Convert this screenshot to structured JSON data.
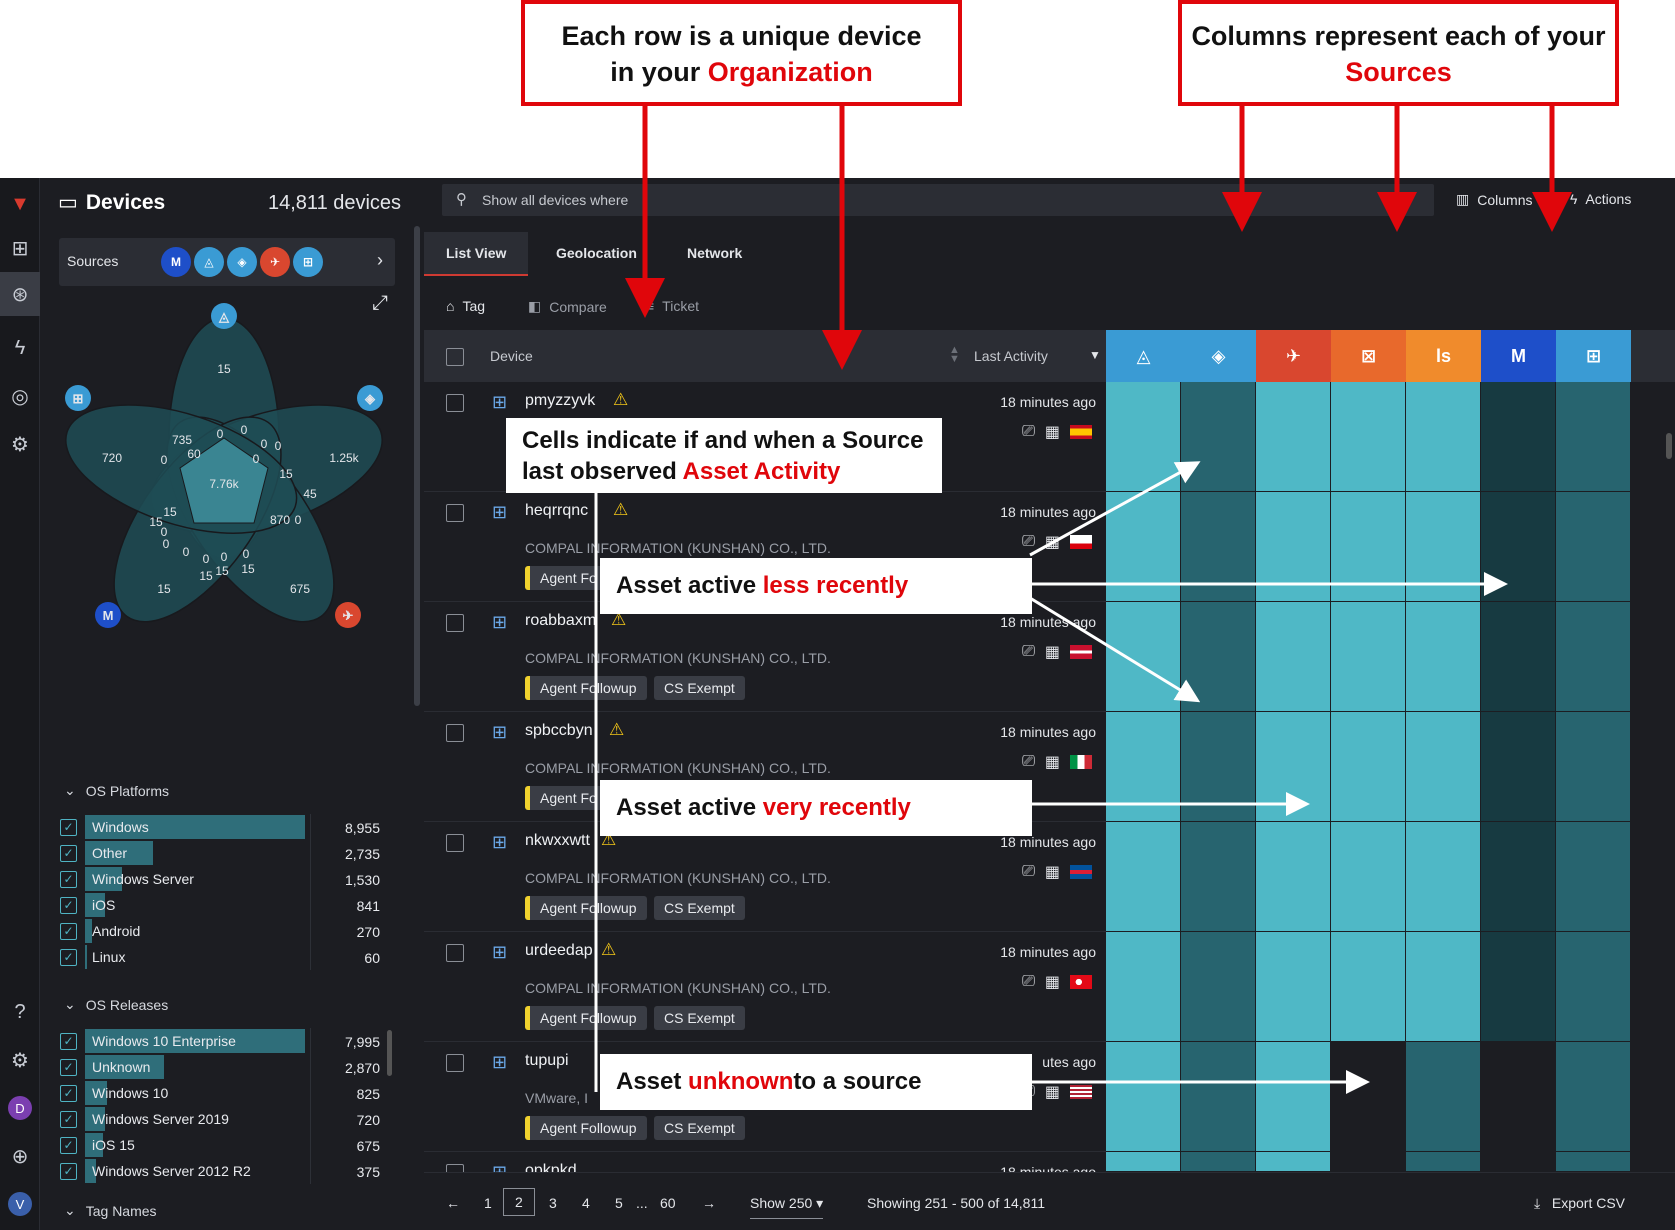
{
  "annotations": {
    "rows_box": {
      "line1": "Each row is a unique device",
      "line2_pre": "in your ",
      "line2_red": "Organization"
    },
    "cols_box": {
      "line1": "Columns represent each of your",
      "line2_red": "Sources"
    },
    "cells_box": {
      "line1": "Cells indicate if and when a Source",
      "line2_pre": "last observed ",
      "line2_red": "Asset Activity"
    },
    "less_recent": {
      "pre": "Asset active ",
      "red": "less recently"
    },
    "very_recent": {
      "pre": "Asset active ",
      "red": "very recently"
    },
    "unknown": {
      "pre": "Asset ",
      "red": "unknown",
      "post": " to a source"
    }
  },
  "header": {
    "title": "Devices",
    "count": "14,811 devices",
    "search_placeholder": "Show all devices where",
    "columns_label": "Columns",
    "actions_label": "Actions"
  },
  "sources": {
    "label": "Sources"
  },
  "venn": {
    "center": "7.76k",
    "labels": [
      "15",
      "735",
      "60",
      "720",
      "1.25k",
      "15",
      "45",
      "870",
      "15",
      "15",
      "675",
      "15",
      "15",
      "15",
      "0",
      "0",
      "0",
      "0",
      "0",
      "0",
      "0",
      "0",
      "0",
      "0",
      "0",
      "0",
      "0"
    ]
  },
  "os_platforms": {
    "title": "OS Platforms",
    "items": [
      {
        "name": "Windows",
        "value": "8,955",
        "fraction": 1.0
      },
      {
        "name": "Other",
        "value": "2,735",
        "fraction": 0.31
      },
      {
        "name": "Windows Server",
        "value": "1,530",
        "fraction": 0.17
      },
      {
        "name": "iOS",
        "value": "841",
        "fraction": 0.09
      },
      {
        "name": "Android",
        "value": "270",
        "fraction": 0.03
      },
      {
        "name": "Linux",
        "value": "60",
        "fraction": 0.01
      }
    ]
  },
  "os_releases": {
    "title": "OS Releases",
    "items": [
      {
        "name": "Windows 10 Enterprise",
        "value": "7,995",
        "fraction": 1.0
      },
      {
        "name": "Unknown",
        "value": "2,870",
        "fraction": 0.36
      },
      {
        "name": "Windows 10",
        "value": "825",
        "fraction": 0.1
      },
      {
        "name": "Windows Server 2019",
        "value": "720",
        "fraction": 0.09
      },
      {
        "name": "iOS 15",
        "value": "675",
        "fraction": 0.08
      },
      {
        "name": "Windows Server 2012 R2",
        "value": "375",
        "fraction": 0.05
      }
    ]
  },
  "tag_names": {
    "title": "Tag Names"
  },
  "tabs": [
    "List View",
    "Geolocation",
    "Network"
  ],
  "toolbar": {
    "tag": "Tag",
    "compare": "Compare",
    "ticket": "Ticket"
  },
  "table": {
    "col_device": "Device",
    "col_activity": "Last Activity"
  },
  "source_columns": [
    {
      "name": "triangle-source",
      "color": "#3a9bd4",
      "glyph": "◬"
    },
    {
      "name": "diamond-source",
      "color": "#3a9bd4",
      "glyph": "◈"
    },
    {
      "name": "falcon-source",
      "color": "#d9472f",
      "glyph": "✈"
    },
    {
      "name": "scan-source",
      "color": "#e8692c",
      "glyph": "⊠"
    },
    {
      "name": "ls-source",
      "color": "#f08b2c",
      "glyph": "ls"
    },
    {
      "name": "neb-source",
      "color": "#1e4fc9",
      "glyph": "M"
    },
    {
      "name": "windows-source",
      "color": "#3a9bd4",
      "glyph": "⊞"
    }
  ],
  "devices": [
    {
      "name": "pmyzzyvk",
      "org": "",
      "time": "18 minutes ago",
      "tag1": "",
      "tag2": "",
      "flag": "es",
      "cells": [
        "l",
        "d",
        "l",
        "l",
        "l",
        "x",
        "d"
      ]
    },
    {
      "name": "heqrrqnc",
      "org": "COMPAL INFORMATION (KUNSHAN) CO., LTD.",
      "time": "18 minutes ago",
      "tag1": "Agent Fo",
      "tag2": "",
      "flag": "gi",
      "cells": [
        "l",
        "d",
        "l",
        "l",
        "l",
        "x",
        "d"
      ]
    },
    {
      "name": "roabbaxm",
      "org": "COMPAL INFORMATION (KUNSHAN) CO., LTD.",
      "time": "18 minutes ago",
      "tag1": "Agent Followup",
      "tag2": "CS Exempt",
      "flag": "dk",
      "cells": [
        "l",
        "d",
        "l",
        "l",
        "l",
        "x",
        "d"
      ]
    },
    {
      "name": "spbccbyn",
      "org": "COMPAL INFORMATION (KUNSHAN) CO., LTD.",
      "time": "18 minutes ago",
      "tag1": "Agent Fo",
      "tag2": "",
      "flag": "it",
      "cells": [
        "l",
        "d",
        "l",
        "l",
        "l",
        "x",
        "d"
      ]
    },
    {
      "name": "nkwxxwtt",
      "org": "COMPAL INFORMATION (KUNSHAN) CO., LTD.",
      "time": "18 minutes ago",
      "tag1": "Agent Followup",
      "tag2": "CS Exempt",
      "flag": "is",
      "cells": [
        "l",
        "d",
        "l",
        "l",
        "l",
        "x",
        "d"
      ]
    },
    {
      "name": "urdeedap",
      "org": "COMPAL INFORMATION (KUNSHAN) CO., LTD.",
      "time": "18 minutes ago",
      "tag1": "Agent Followup",
      "tag2": "CS Exempt",
      "flag": "tr",
      "cells": [
        "l",
        "d",
        "l",
        "l",
        "l",
        "x",
        "d"
      ]
    },
    {
      "name": "tupupi",
      "org": "VMware, I",
      "time": "utes ago",
      "tag1": "Agent Followup",
      "tag2": "CS Exempt",
      "flag": "us",
      "cells": [
        "l",
        "d",
        "l",
        "n",
        "d",
        "n",
        "d"
      ]
    },
    {
      "name": "opkpkd",
      "org": "",
      "time": "18 minutes ago",
      "tag1": "",
      "tag2": "",
      "flag": "",
      "cells": [
        "l",
        "d",
        "l",
        "n",
        "d",
        "n",
        "d"
      ]
    }
  ],
  "pager": {
    "pages": [
      "1",
      "2",
      "3",
      "4",
      "5",
      "...",
      "60"
    ],
    "show": "Show 250",
    "showing": "Showing 251 - 500 of 14,811",
    "export": "Export CSV"
  },
  "colors": {
    "cell_light": "#4fb8c6",
    "cell_dark": "#27646f",
    "cell_darker": "#173a41",
    "cell_none": "#1c1d22"
  }
}
